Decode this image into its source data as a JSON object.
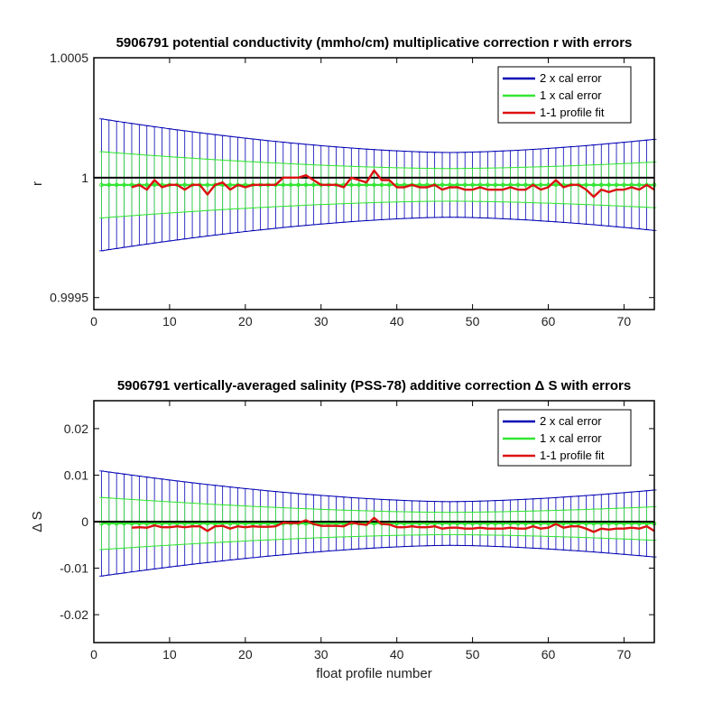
{
  "chart_data": [
    {
      "type": "line",
      "title": "5906791 potential conductivity (mmho/cm) multiplicative correction r with errors",
      "xlabel": "",
      "ylabel": "r",
      "xlim": [
        0,
        74
      ],
      "ylim": [
        0.99945,
        1.0005
      ],
      "xticks": [
        "0",
        "10",
        "20",
        "30",
        "40",
        "50",
        "60",
        "70"
      ],
      "yticks": [
        "0.9995",
        "1",
        "1.0005"
      ],
      "ytick_values": [
        0.9995,
        1.0,
        1.0005
      ],
      "reference_line": 1.0,
      "legend_position": "top-right",
      "legend": [
        "2 x cal error",
        "1 x cal error",
        "1-1 profile fit"
      ],
      "colors": {
        "two_cal": "#0000b4",
        "one_cal": "#33e633",
        "fit": "#dd1111",
        "reference": "#000000"
      },
      "x": [
        1,
        2,
        3,
        4,
        5,
        6,
        7,
        8,
        9,
        10,
        11,
        12,
        13,
        14,
        15,
        16,
        17,
        18,
        19,
        20,
        21,
        22,
        23,
        24,
        25,
        26,
        27,
        28,
        29,
        30,
        31,
        32,
        33,
        34,
        35,
        36,
        37,
        38,
        39,
        40,
        41,
        42,
        43,
        44,
        45,
        46,
        47,
        48,
        49,
        50,
        51,
        52,
        53,
        54,
        55,
        56,
        57,
        58,
        59,
        60,
        61,
        62,
        63,
        64,
        65,
        66,
        67,
        68,
        69,
        70,
        71,
        72,
        73,
        74
      ],
      "series": [
        {
          "name": "2 x cal error",
          "type": "errorbar",
          "center": 0.99997,
          "half_width_start": 0.000275,
          "half_width_min": 0.000135,
          "half_width_end": 0.00019,
          "min_at_x": 47
        },
        {
          "name": "1 x cal error",
          "type": "errorbar",
          "center": 0.99997,
          "half_width_start": 0.000138,
          "half_width_min": 6.8e-05,
          "half_width_end": 9.5e-05,
          "min_at_x": 47
        },
        {
          "name": "1-1 profile fit",
          "type": "line",
          "x": [
            5,
            6,
            7,
            8,
            9,
            10,
            11,
            12,
            13,
            14,
            15,
            16,
            17,
            18,
            19,
            20,
            21,
            22,
            23,
            24,
            25,
            26,
            27,
            28,
            29,
            30,
            31,
            32,
            33,
            34,
            35,
            36,
            37,
            38,
            39,
            40,
            41,
            42,
            43,
            44,
            45,
            46,
            47,
            48,
            49,
            50,
            51,
            52,
            53,
            54,
            55,
            56,
            57,
            58,
            59,
            60,
            61,
            62,
            63,
            64,
            65,
            66,
            67,
            68,
            69,
            70,
            71,
            72,
            73,
            74
          ],
          "values": [
            0.99996,
            0.99997,
            0.99995,
            0.99999,
            0.99996,
            0.99997,
            0.99997,
            0.99995,
            0.99997,
            0.99997,
            0.99993,
            0.99997,
            0.99998,
            0.99995,
            0.99997,
            0.99996,
            0.99997,
            0.99997,
            0.99997,
            0.99997,
            1.0,
            1.0,
            1.0,
            1.00001,
            0.99999,
            0.99997,
            0.99997,
            0.99997,
            0.99996,
            1.0,
            0.99999,
            0.99998,
            1.00003,
            0.99999,
            0.99999,
            0.99996,
            0.99996,
            0.99997,
            0.99996,
            0.99996,
            0.99997,
            0.99995,
            0.99996,
            0.99996,
            0.99995,
            0.99995,
            0.99996,
            0.99995,
            0.99995,
            0.99995,
            0.99996,
            0.99995,
            0.99995,
            0.99997,
            0.99995,
            0.99996,
            0.99999,
            0.99996,
            0.99997,
            0.99997,
            0.99995,
            0.99992,
            0.99995,
            0.99994,
            0.99995,
            0.99995,
            0.99996,
            0.99995,
            0.99997,
            0.99995
          ]
        }
      ]
    },
    {
      "type": "line",
      "title": "5906791 vertically-averaged salinity (PSS-78) additive correction Δ S with errors",
      "xlabel": "float profile number",
      "ylabel": "Δ S",
      "xlim": [
        0,
        74
      ],
      "ylim": [
        -0.026,
        0.026
      ],
      "xticks": [
        "0",
        "10",
        "20",
        "30",
        "40",
        "50",
        "60",
        "70"
      ],
      "yticks": [
        "-0.02",
        "-0.01",
        "0",
        "0.01",
        "0.02"
      ],
      "ytick_values": [
        -0.02,
        -0.01,
        0,
        0.01,
        0.02
      ],
      "reference_line": 0,
      "legend_position": "top-right",
      "legend": [
        "2 x cal error",
        "1 x cal error",
        "1-1 profile fit"
      ],
      "colors": {
        "two_cal": "#0000b4",
        "one_cal": "#33e633",
        "fit": "#dd1111",
        "reference": "#000000"
      },
      "x": [
        1,
        2,
        3,
        4,
        5,
        6,
        7,
        8,
        9,
        10,
        11,
        12,
        13,
        14,
        15,
        16,
        17,
        18,
        19,
        20,
        21,
        22,
        23,
        24,
        25,
        26,
        27,
        28,
        29,
        30,
        31,
        32,
        33,
        34,
        35,
        36,
        37,
        38,
        39,
        40,
        41,
        42,
        43,
        44,
        45,
        46,
        47,
        48,
        49,
        50,
        51,
        52,
        53,
        54,
        55,
        56,
        57,
        58,
        59,
        60,
        61,
        62,
        63,
        64,
        65,
        66,
        67,
        68,
        69,
        70,
        71,
        72,
        73,
        74
      ],
      "series": [
        {
          "name": "2 x cal error",
          "type": "errorbar",
          "center": -0.0004,
          "half_width_start": 0.0113,
          "half_width_min": 0.0047,
          "half_width_end": 0.0072,
          "min_at_x": 47
        },
        {
          "name": "1 x cal error",
          "type": "errorbar",
          "center": -0.0004,
          "half_width_start": 0.0056,
          "half_width_min": 0.0024,
          "half_width_end": 0.0036,
          "min_at_x": 47
        },
        {
          "name": "1-1 profile fit",
          "type": "line",
          "x": [
            5,
            6,
            7,
            8,
            9,
            10,
            11,
            12,
            13,
            14,
            15,
            16,
            17,
            18,
            19,
            20,
            21,
            22,
            23,
            24,
            25,
            26,
            27,
            28,
            29,
            30,
            31,
            32,
            33,
            34,
            35,
            36,
            37,
            38,
            39,
            40,
            41,
            42,
            43,
            44,
            45,
            46,
            47,
            48,
            49,
            50,
            51,
            52,
            53,
            54,
            55,
            56,
            57,
            58,
            59,
            60,
            61,
            62,
            63,
            64,
            65,
            66,
            67,
            68,
            69,
            70,
            71,
            72,
            73,
            74
          ],
          "values": [
            -0.0013,
            -0.0012,
            -0.0013,
            -0.0008,
            -0.0012,
            -0.0012,
            -0.001,
            -0.0012,
            -0.001,
            -0.001,
            -0.002,
            -0.001,
            -0.0009,
            -0.0015,
            -0.001,
            -0.0012,
            -0.001,
            -0.0011,
            -0.0011,
            -0.001,
            -0.0002,
            -0.0003,
            -0.0003,
            0.0003,
            -0.0005,
            -0.0009,
            -0.0009,
            -0.0009,
            -0.001,
            -0.0002,
            -0.0005,
            -0.0007,
            0.0008,
            -0.0005,
            -0.0006,
            -0.0012,
            -0.0012,
            -0.001,
            -0.0012,
            -0.0012,
            -0.001,
            -0.0015,
            -0.0013,
            -0.0013,
            -0.0015,
            -0.0015,
            -0.0013,
            -0.0015,
            -0.0015,
            -0.0015,
            -0.0013,
            -0.0015,
            -0.0015,
            -0.001,
            -0.0015,
            -0.0013,
            -0.0005,
            -0.0013,
            -0.001,
            -0.001,
            -0.0015,
            -0.0022,
            -0.0015,
            -0.0017,
            -0.0015,
            -0.0015,
            -0.0013,
            -0.0015,
            -0.001,
            -0.002
          ]
        }
      ]
    }
  ]
}
